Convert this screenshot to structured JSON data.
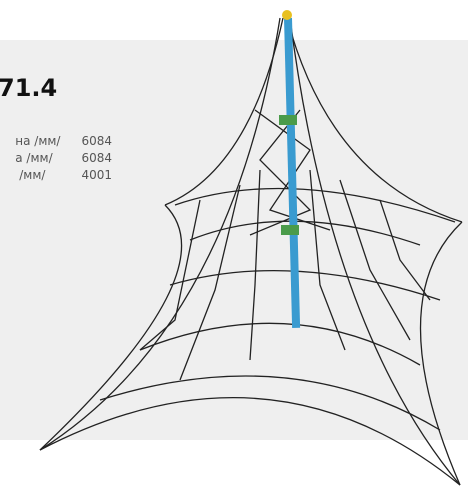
{
  "title": "71.4",
  "specs": [
    {
      "label": "на /мм/",
      "value": "6084"
    },
    {
      "label": "а /мм/",
      "value": "6084"
    },
    {
      "label": "/мм/",
      "value": "4001"
    }
  ]
}
